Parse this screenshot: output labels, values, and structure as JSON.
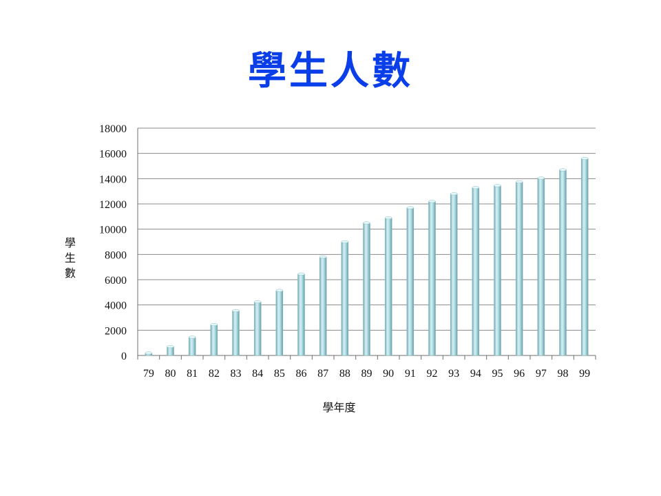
{
  "slide": {
    "title": "學生人數"
  },
  "colors": {
    "title": "#0a3ee8",
    "bar": "#a9d8df"
  },
  "chart_data": {
    "type": "bar",
    "title": "",
    "xlabel": "學年度",
    "ylabel": "學生數",
    "categories": [
      "79",
      "80",
      "81",
      "82",
      "83",
      "84",
      "85",
      "86",
      "87",
      "88",
      "89",
      "90",
      "91",
      "92",
      "93",
      "94",
      "95",
      "96",
      "97",
      "98",
      "99"
    ],
    "values": [
      200,
      700,
      1450,
      2450,
      3550,
      4250,
      5150,
      6450,
      7800,
      9000,
      10500,
      10900,
      11700,
      12200,
      12800,
      13300,
      13450,
      13750,
      14050,
      14700,
      15600
    ],
    "ylim": [
      0,
      18000
    ],
    "yticks": [
      0,
      2000,
      4000,
      6000,
      8000,
      10000,
      12000,
      14000,
      16000,
      18000
    ],
    "grid": true,
    "legend": "none"
  }
}
